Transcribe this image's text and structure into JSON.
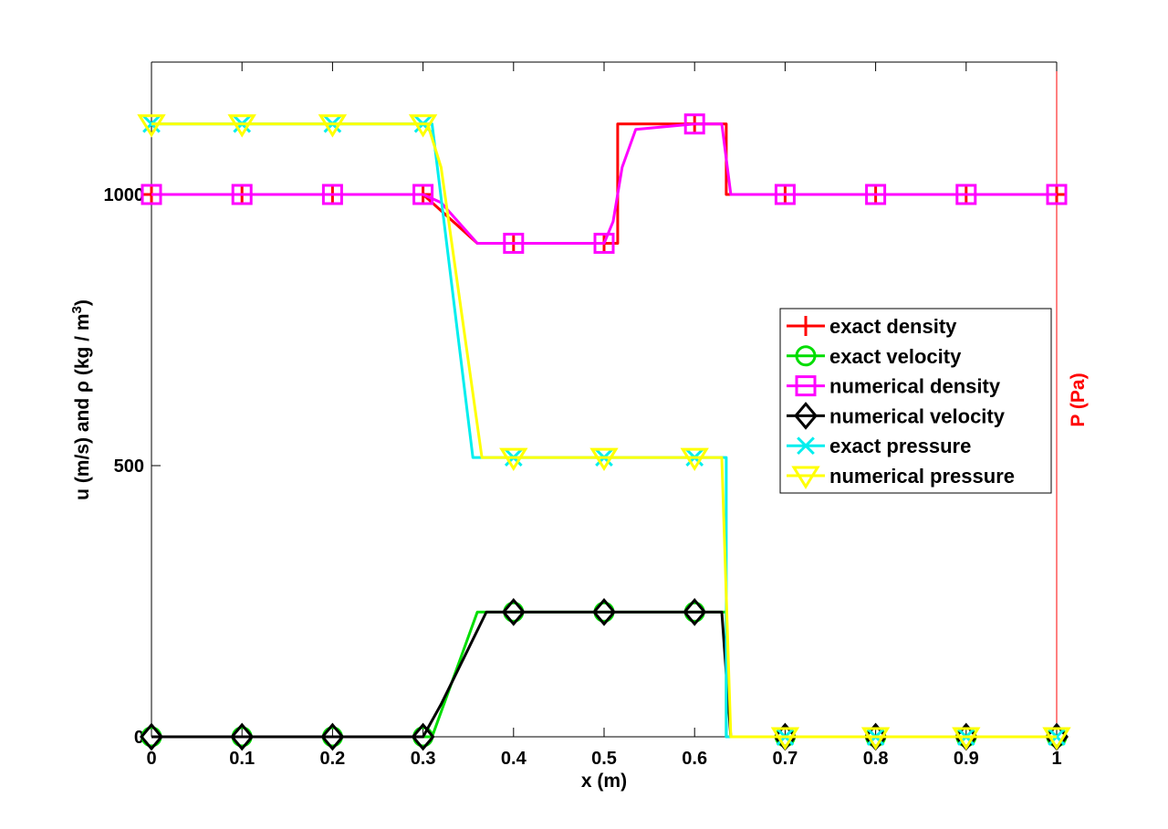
{
  "chart_data": {
    "type": "line",
    "title": "",
    "xlabel": "x (m)",
    "ylabel_left": "u (m/s) and ρ (kg / m",
    "ylabel_left_sup": "3",
    "ylabel_left_close": ")",
    "ylabel_right": "P (Pa)",
    "xlim": [
      0,
      1
    ],
    "ylim": [
      0,
      1000
    ],
    "x_ticks": [
      0,
      0.1,
      0.2,
      0.3,
      0.4,
      0.5,
      0.6,
      0.7,
      0.8,
      0.9,
      1
    ],
    "x_tick_labels": [
      "0",
      "0.1",
      "0.2",
      "0.3",
      "0.4",
      "0.5",
      "0.6",
      "0.7",
      "0.8",
      "0.9",
      "1"
    ],
    "y_ticks": [
      0,
      500,
      1000
    ],
    "y_tick_labels": [
      "0",
      "500",
      "1000"
    ],
    "grid": false,
    "legend_position": "right",
    "series": [
      {
        "name": "exact density",
        "color": "#ff0000",
        "marker": "plus",
        "x": [
          0,
          0.3,
          0.36,
          0.515,
          0.515,
          0.635,
          0.635,
          1
        ],
        "y": [
          1000,
          1000,
          910,
          910,
          1130,
          1130,
          1000,
          1000
        ],
        "marker_x": [
          0,
          0.1,
          0.2,
          0.3,
          0.4,
          0.5,
          0.6,
          0.7,
          0.8,
          0.9,
          1
        ],
        "marker_y": [
          1000,
          1000,
          1000,
          1000,
          910,
          910,
          1130,
          1000,
          1000,
          1000,
          1000
        ]
      },
      {
        "name": "exact velocity",
        "color": "#00dd00",
        "marker": "circle",
        "x": [
          0,
          0.31,
          0.36,
          0.635,
          0.635,
          1
        ],
        "y": [
          0,
          0,
          230,
          230,
          0,
          0
        ],
        "marker_x": [
          0,
          0.1,
          0.2,
          0.3,
          0.4,
          0.5,
          0.6,
          0.7,
          0.8,
          0.9,
          1
        ],
        "marker_y": [
          0,
          0,
          0,
          0,
          230,
          230,
          230,
          0,
          0,
          0,
          0
        ]
      },
      {
        "name": "numerical density",
        "color": "#ff00ff",
        "marker": "square",
        "x": [
          0,
          0.3,
          0.32,
          0.36,
          0.5,
          0.51,
          0.52,
          0.535,
          0.6,
          0.63,
          0.64,
          1
        ],
        "y": [
          1000,
          1000,
          985,
          910,
          910,
          950,
          1050,
          1120,
          1130,
          1130,
          1000,
          1000
        ],
        "marker_x": [
          0,
          0.1,
          0.2,
          0.3,
          0.4,
          0.5,
          0.6,
          0.7,
          0.8,
          0.9,
          1
        ],
        "marker_y": [
          1000,
          1000,
          1000,
          1000,
          910,
          910,
          1130,
          1000,
          1000,
          1000,
          1000
        ]
      },
      {
        "name": "numerical velocity",
        "color": "#000000",
        "marker": "diamond",
        "x": [
          0,
          0.3,
          0.32,
          0.37,
          0.63,
          0.64,
          1
        ],
        "y": [
          0,
          0,
          60,
          230,
          230,
          0,
          0
        ],
        "marker_x": [
          0,
          0.1,
          0.2,
          0.3,
          0.4,
          0.5,
          0.6,
          0.7,
          0.8,
          0.9,
          1
        ],
        "marker_y": [
          0,
          0,
          0,
          0,
          230,
          230,
          230,
          0,
          0,
          0,
          0
        ]
      },
      {
        "name": "exact pressure",
        "color": "#00eeee",
        "marker": "x",
        "x": [
          0,
          0.31,
          0.355,
          0.635,
          0.635,
          1
        ],
        "y": [
          1130,
          1130,
          515,
          515,
          0,
          0
        ],
        "marker_x": [
          0,
          0.1,
          0.2,
          0.3,
          0.4,
          0.5,
          0.6,
          0.7,
          0.8,
          0.9,
          1
        ],
        "marker_y": [
          1130,
          1130,
          1130,
          1130,
          515,
          515,
          515,
          0,
          0,
          0,
          0
        ]
      },
      {
        "name": "numerical pressure",
        "color": "#ffff00",
        "marker": "triangle-down",
        "x": [
          0,
          0.305,
          0.32,
          0.365,
          0.63,
          0.64,
          1
        ],
        "y": [
          1130,
          1130,
          1050,
          515,
          515,
          0,
          0
        ],
        "marker_x": [
          0,
          0.1,
          0.2,
          0.3,
          0.4,
          0.5,
          0.6,
          0.7,
          0.8,
          0.9,
          1
        ],
        "marker_y": [
          1130,
          1130,
          1130,
          1130,
          515,
          515,
          515,
          0,
          0,
          0,
          0
        ]
      }
    ]
  }
}
